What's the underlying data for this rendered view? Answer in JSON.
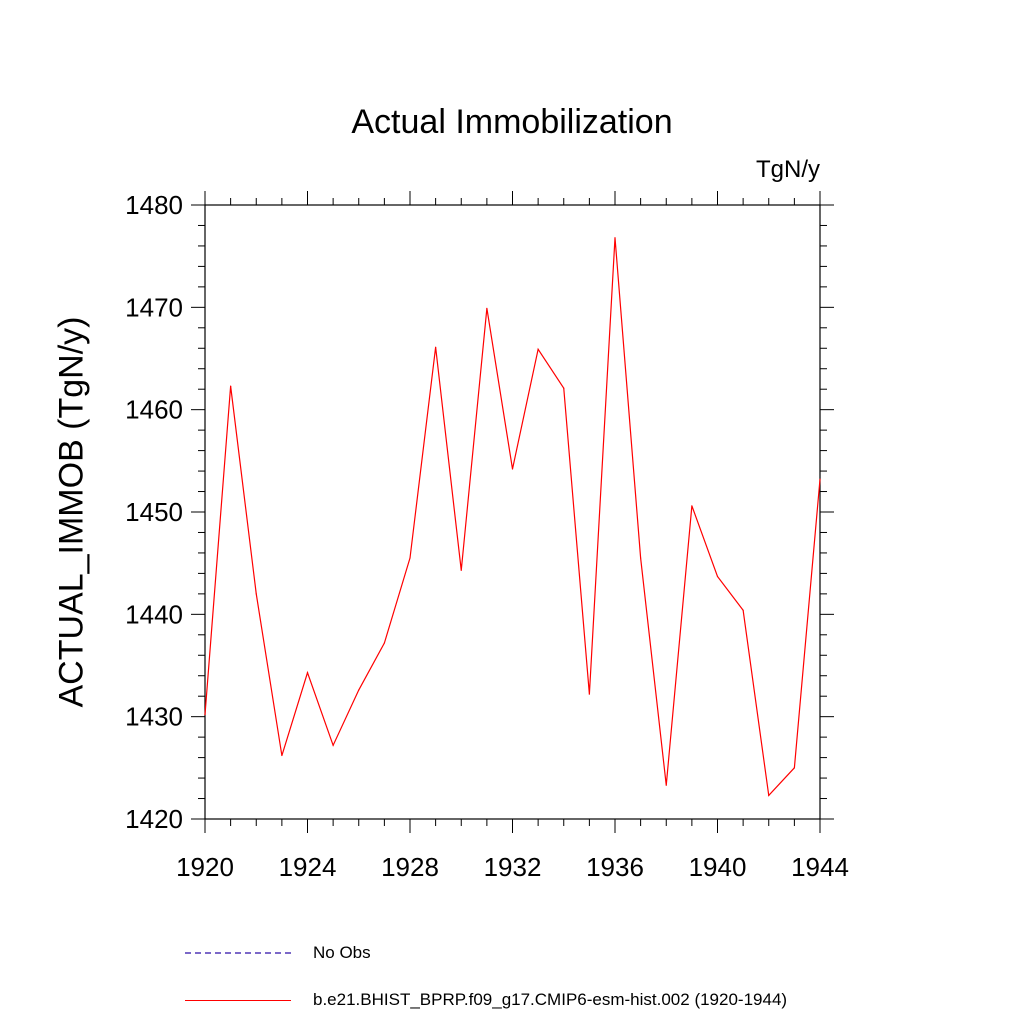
{
  "chart_data": {
    "type": "line",
    "title": "Actual Immobilization",
    "units": "TgN/y",
    "ylabel": "ACTUAL_IMMOB  (TgN/y)",
    "xlabel": "",
    "xlim": [
      1920,
      1944
    ],
    "ylim": [
      1420,
      1480
    ],
    "x_ticks": [
      "1920",
      "1924",
      "1928",
      "1932",
      "1936",
      "1940",
      "1944"
    ],
    "y_ticks": [
      "1420",
      "1430",
      "1440",
      "1450",
      "1460",
      "1470",
      "1480"
    ],
    "x": [
      1920,
      1921,
      1922,
      1923,
      1924,
      1925,
      1926,
      1927,
      1928,
      1929,
      1930,
      1931,
      1932,
      1933,
      1934,
      1935,
      1936,
      1937,
      1938,
      1939,
      1940,
      1941,
      1942,
      1943,
      1944
    ],
    "series": [
      {
        "name": "b.e21.BHIST_BPRP.f09_g17.CMIP6-esm-hist.002 (1920-1944)",
        "color": "#ff0000",
        "style": "solid",
        "values": [
          1430.2,
          1462.3,
          1442.0,
          1426.2,
          1434.3,
          1427.2,
          1432.6,
          1437.2,
          1445.5,
          1466.1,
          1444.3,
          1469.9,
          1454.2,
          1465.9,
          1462.1,
          1432.2,
          1476.8,
          1445.5,
          1423.3,
          1450.6,
          1443.7,
          1440.4,
          1422.3,
          1425.0,
          1453.2
        ]
      }
    ],
    "legend": [
      {
        "label": "No Obs",
        "color": "#7b68c8",
        "style": "dashed"
      },
      {
        "label": "b.e21.BHIST_BPRP.f09_g17.CMIP6-esm-hist.002 (1920-1944)",
        "color": "#ff0000",
        "style": "solid"
      }
    ],
    "grid": false,
    "legend_position": "bottom"
  }
}
